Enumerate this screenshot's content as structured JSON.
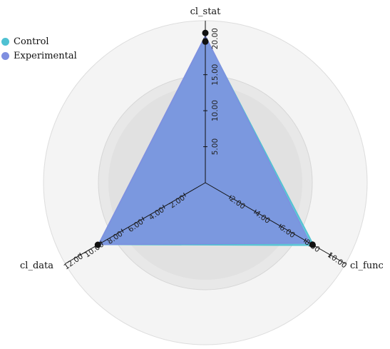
{
  "chart_data": {
    "type": "radar",
    "axes": [
      {
        "name": "cl_stat",
        "max": 22.5,
        "ticks": [
          5,
          10,
          15,
          20
        ],
        "tick_labels": [
          "5.00",
          "10.00",
          "15.00",
          "20.00"
        ]
      },
      {
        "name": "cl_func",
        "max": 11.25,
        "ticks": [
          2,
          4,
          6,
          8,
          10
        ],
        "tick_labels": [
          "2.00",
          "4.00",
          "6.00",
          "8.00",
          "10.00"
        ]
      },
      {
        "name": "cl_data",
        "max": 13.5,
        "ticks": [
          2,
          4,
          6,
          8,
          10,
          12
        ],
        "tick_labels": [
          "2.00",
          "4.00",
          "6.00",
          "8.00",
          "10.00",
          "12.00"
        ]
      }
    ],
    "series": [
      {
        "name": "Control",
        "color": "#4fc1d2",
        "values": [
          20.3,
          8.7,
          10.3
        ]
      },
      {
        "name": "Experimental",
        "color": "#7f8fe0",
        "values": [
          20.4,
          8.4,
          10.3
        ]
      }
    ],
    "markers": [
      {
        "axis": 0,
        "value": 20.8
      },
      {
        "axis": 0,
        "value": 19.6
      },
      {
        "axis": 1,
        "value": 8.6
      },
      {
        "axis": 2,
        "value": 10.35
      }
    ],
    "legend_position": "top-left",
    "grid": true
  }
}
